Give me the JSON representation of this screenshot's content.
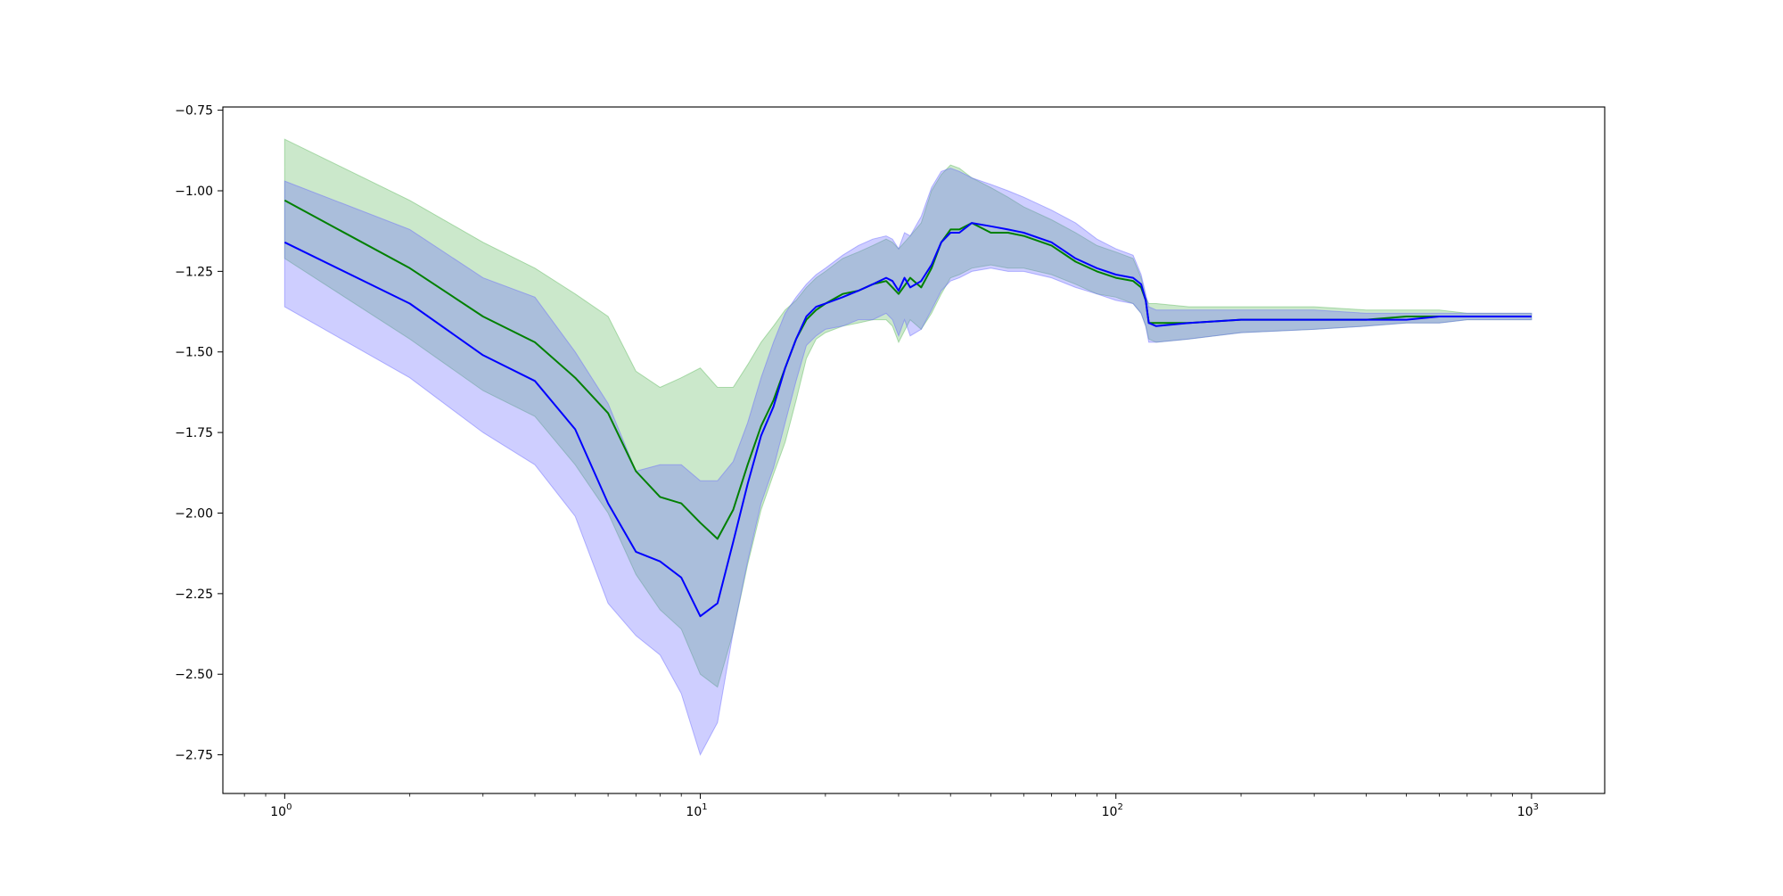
{
  "chart_data": {
    "type": "line",
    "title": "",
    "xlabel": "",
    "ylabel": "",
    "xscale": "log",
    "xlim": [
      0.71,
      1500
    ],
    "ylim": [
      -2.87,
      -0.74
    ],
    "grid": false,
    "legend": "none",
    "x_tick_labels": [
      {
        "value": 1,
        "base": "10",
        "exp": "0"
      },
      {
        "value": 10,
        "base": "10",
        "exp": "1"
      },
      {
        "value": 100,
        "base": "10",
        "exp": "2"
      },
      {
        "value": 1000,
        "base": "10",
        "exp": "3"
      }
    ],
    "y_ticks": [
      -0.75,
      -1.0,
      -1.25,
      -1.5,
      -1.75,
      -2.0,
      -2.25,
      -2.5,
      -2.75
    ],
    "y_tick_labels": [
      "−0.75",
      "−1.00",
      "−1.25",
      "−1.50",
      "−1.75",
      "−2.00",
      "−2.25",
      "−2.50",
      "−2.75"
    ],
    "series": [
      {
        "color": "#008000",
        "band_color": "#5cb85c",
        "x": [
          1,
          2,
          3,
          4,
          5,
          6,
          7,
          8,
          9,
          10,
          11,
          12,
          13,
          14,
          15,
          16,
          17,
          18,
          19,
          20,
          22,
          24,
          26,
          28,
          29,
          30,
          32,
          34,
          36,
          38,
          40,
          42,
          45,
          50,
          55,
          60,
          70,
          80,
          90,
          100,
          110,
          115,
          118,
          120,
          125,
          150,
          200,
          300,
          400,
          500,
          600,
          700,
          800,
          900,
          1000
        ],
        "y": [
          -1.03,
          -1.24,
          -1.39,
          -1.47,
          -1.58,
          -1.69,
          -1.87,
          -1.95,
          -1.97,
          -2.03,
          -2.08,
          -1.99,
          -1.85,
          -1.73,
          -1.65,
          -1.55,
          -1.46,
          -1.4,
          -1.37,
          -1.35,
          -1.32,
          -1.31,
          -1.29,
          -1.28,
          -1.3,
          -1.32,
          -1.27,
          -1.3,
          -1.24,
          -1.16,
          -1.12,
          -1.12,
          -1.1,
          -1.13,
          -1.13,
          -1.14,
          -1.17,
          -1.22,
          -1.25,
          -1.27,
          -1.28,
          -1.3,
          -1.34,
          -1.41,
          -1.41,
          -1.41,
          -1.4,
          -1.4,
          -1.4,
          -1.39,
          -1.39,
          -1.39,
          -1.39,
          -1.39,
          -1.39
        ],
        "upper": [
          -0.84,
          -1.03,
          -1.16,
          -1.24,
          -1.32,
          -1.39,
          -1.56,
          -1.61,
          -1.58,
          -1.55,
          -1.61,
          -1.61,
          -1.54,
          -1.47,
          -1.42,
          -1.37,
          -1.34,
          -1.3,
          -1.27,
          -1.25,
          -1.21,
          -1.19,
          -1.17,
          -1.15,
          -1.16,
          -1.18,
          -1.14,
          -1.1,
          -1.0,
          -0.95,
          -0.92,
          -0.93,
          -0.96,
          -0.99,
          -1.02,
          -1.05,
          -1.09,
          -1.13,
          -1.17,
          -1.19,
          -1.21,
          -1.27,
          -1.33,
          -1.35,
          -1.35,
          -1.36,
          -1.36,
          -1.36,
          -1.37,
          -1.37,
          -1.37,
          -1.38,
          -1.38,
          -1.38,
          -1.38
        ],
        "lower": [
          -1.21,
          -1.46,
          -1.62,
          -1.7,
          -1.85,
          -2.0,
          -2.19,
          -2.3,
          -2.36,
          -2.5,
          -2.54,
          -2.37,
          -2.16,
          -1.99,
          -1.88,
          -1.78,
          -1.65,
          -1.52,
          -1.46,
          -1.44,
          -1.42,
          -1.41,
          -1.4,
          -1.4,
          -1.42,
          -1.47,
          -1.4,
          -1.43,
          -1.38,
          -1.32,
          -1.27,
          -1.26,
          -1.24,
          -1.23,
          -1.24,
          -1.24,
          -1.26,
          -1.29,
          -1.32,
          -1.33,
          -1.35,
          -1.38,
          -1.42,
          -1.46,
          -1.47,
          -1.46,
          -1.44,
          -1.43,
          -1.42,
          -1.41,
          -1.41,
          -1.4,
          -1.4,
          -1.4,
          -1.4
        ]
      },
      {
        "color": "#0000ff",
        "band_color": "#6666ff",
        "x": [
          1,
          2,
          3,
          4,
          5,
          6,
          7,
          8,
          9,
          10,
          11,
          12,
          13,
          14,
          15,
          16,
          17,
          18,
          19,
          20,
          22,
          24,
          26,
          28,
          29,
          30,
          31,
          32,
          34,
          36,
          38,
          40,
          42,
          45,
          50,
          55,
          60,
          70,
          80,
          90,
          100,
          110,
          115,
          118,
          120,
          125,
          150,
          200,
          300,
          400,
          500,
          600,
          700,
          800,
          900,
          1000
        ],
        "y": [
          -1.16,
          -1.35,
          -1.51,
          -1.59,
          -1.74,
          -1.97,
          -2.12,
          -2.15,
          -2.2,
          -2.32,
          -2.28,
          -2.09,
          -1.91,
          -1.76,
          -1.67,
          -1.55,
          -1.46,
          -1.39,
          -1.36,
          -1.35,
          -1.33,
          -1.31,
          -1.29,
          -1.27,
          -1.28,
          -1.31,
          -1.27,
          -1.3,
          -1.28,
          -1.23,
          -1.16,
          -1.13,
          -1.13,
          -1.1,
          -1.11,
          -1.12,
          -1.13,
          -1.16,
          -1.21,
          -1.24,
          -1.26,
          -1.27,
          -1.29,
          -1.34,
          -1.41,
          -1.42,
          -1.41,
          -1.4,
          -1.4,
          -1.4,
          -1.4,
          -1.39,
          -1.39,
          -1.39,
          -1.39,
          -1.39
        ],
        "upper": [
          -0.97,
          -1.12,
          -1.27,
          -1.33,
          -1.5,
          -1.66,
          -1.87,
          -1.85,
          -1.85,
          -1.9,
          -1.9,
          -1.84,
          -1.72,
          -1.58,
          -1.47,
          -1.38,
          -1.33,
          -1.29,
          -1.26,
          -1.24,
          -1.2,
          -1.17,
          -1.15,
          -1.14,
          -1.15,
          -1.18,
          -1.13,
          -1.14,
          -1.08,
          -0.99,
          -0.94,
          -0.93,
          -0.94,
          -0.96,
          -0.98,
          -1.0,
          -1.02,
          -1.06,
          -1.1,
          -1.15,
          -1.18,
          -1.2,
          -1.26,
          -1.32,
          -1.36,
          -1.37,
          -1.37,
          -1.37,
          -1.37,
          -1.38,
          -1.38,
          -1.38,
          -1.38,
          -1.38,
          -1.38,
          -1.38
        ],
        "lower": [
          -1.36,
          -1.58,
          -1.75,
          -1.85,
          -2.01,
          -2.28,
          -2.38,
          -2.44,
          -2.56,
          -2.75,
          -2.65,
          -2.37,
          -2.15,
          -1.97,
          -1.86,
          -1.72,
          -1.59,
          -1.48,
          -1.45,
          -1.43,
          -1.42,
          -1.4,
          -1.4,
          -1.38,
          -1.4,
          -1.45,
          -1.4,
          -1.45,
          -1.43,
          -1.37,
          -1.31,
          -1.28,
          -1.27,
          -1.25,
          -1.24,
          -1.25,
          -1.25,
          -1.27,
          -1.3,
          -1.32,
          -1.34,
          -1.35,
          -1.38,
          -1.42,
          -1.47,
          -1.47,
          -1.46,
          -1.44,
          -1.43,
          -1.42,
          -1.41,
          -1.41,
          -1.4,
          -1.4,
          -1.4,
          -1.4
        ]
      }
    ]
  }
}
